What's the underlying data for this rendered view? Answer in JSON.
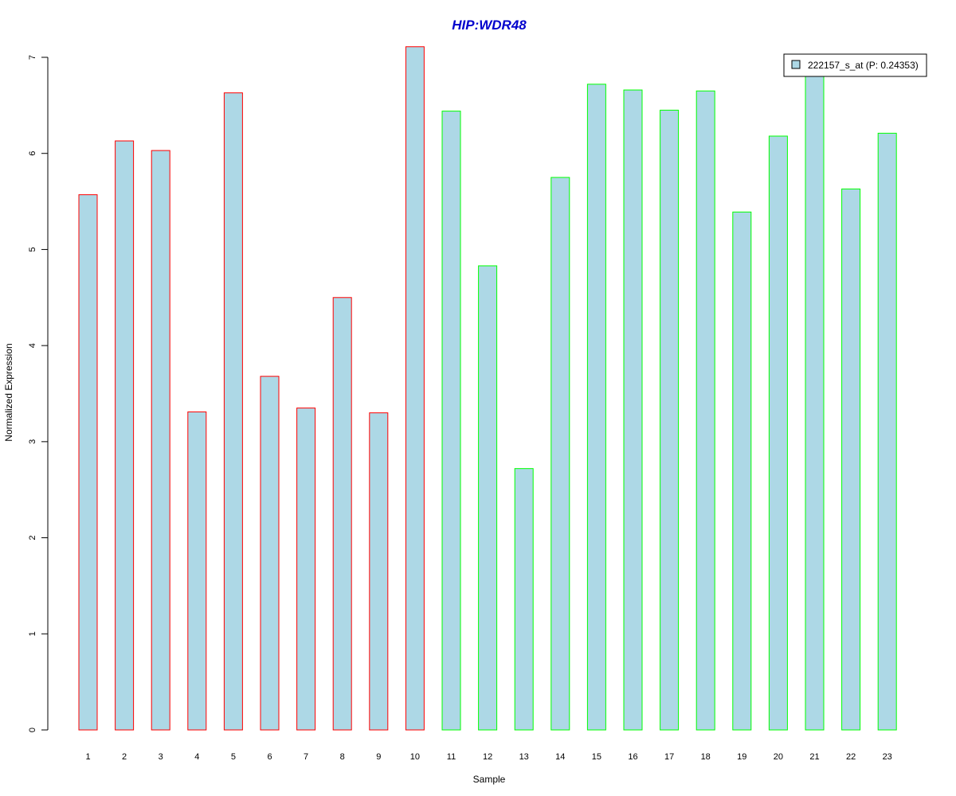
{
  "chart_data": {
    "type": "bar",
    "title": "HIP:WDR48",
    "xlabel": "Sample",
    "ylabel": "Normalized Expression",
    "categories": [
      "1",
      "2",
      "3",
      "4",
      "5",
      "6",
      "7",
      "8",
      "9",
      "10",
      "11",
      "12",
      "13",
      "14",
      "15",
      "16",
      "17",
      "18",
      "19",
      "20",
      "21",
      "22",
      "23"
    ],
    "series": [
      {
        "name": "222157_s_at (P: 0.24353)",
        "values": [
          5.57,
          6.13,
          6.03,
          3.31,
          6.63,
          3.68,
          3.35,
          4.5,
          3.3,
          7.11,
          6.44,
          4.83,
          2.72,
          5.75,
          6.72,
          6.66,
          6.45,
          6.65,
          5.39,
          6.18,
          6.9,
          5.63,
          6.21
        ]
      }
    ],
    "groups": [
      "red",
      "red",
      "red",
      "red",
      "red",
      "red",
      "red",
      "red",
      "red",
      "red",
      "green",
      "green",
      "green",
      "green",
      "green",
      "green",
      "green",
      "green",
      "green",
      "green",
      "green",
      "green",
      "green"
    ],
    "ylim": [
      0,
      7
    ],
    "yticks": [
      "0",
      "1",
      "2",
      "3",
      "4",
      "5",
      "6",
      "7"
    ],
    "grid": false,
    "legend_position": "top-right",
    "colors": {
      "bar_fill": "#add8e6",
      "red_border": "#ff0000",
      "green_border": "#00ff00",
      "title": "#0000cd"
    }
  }
}
